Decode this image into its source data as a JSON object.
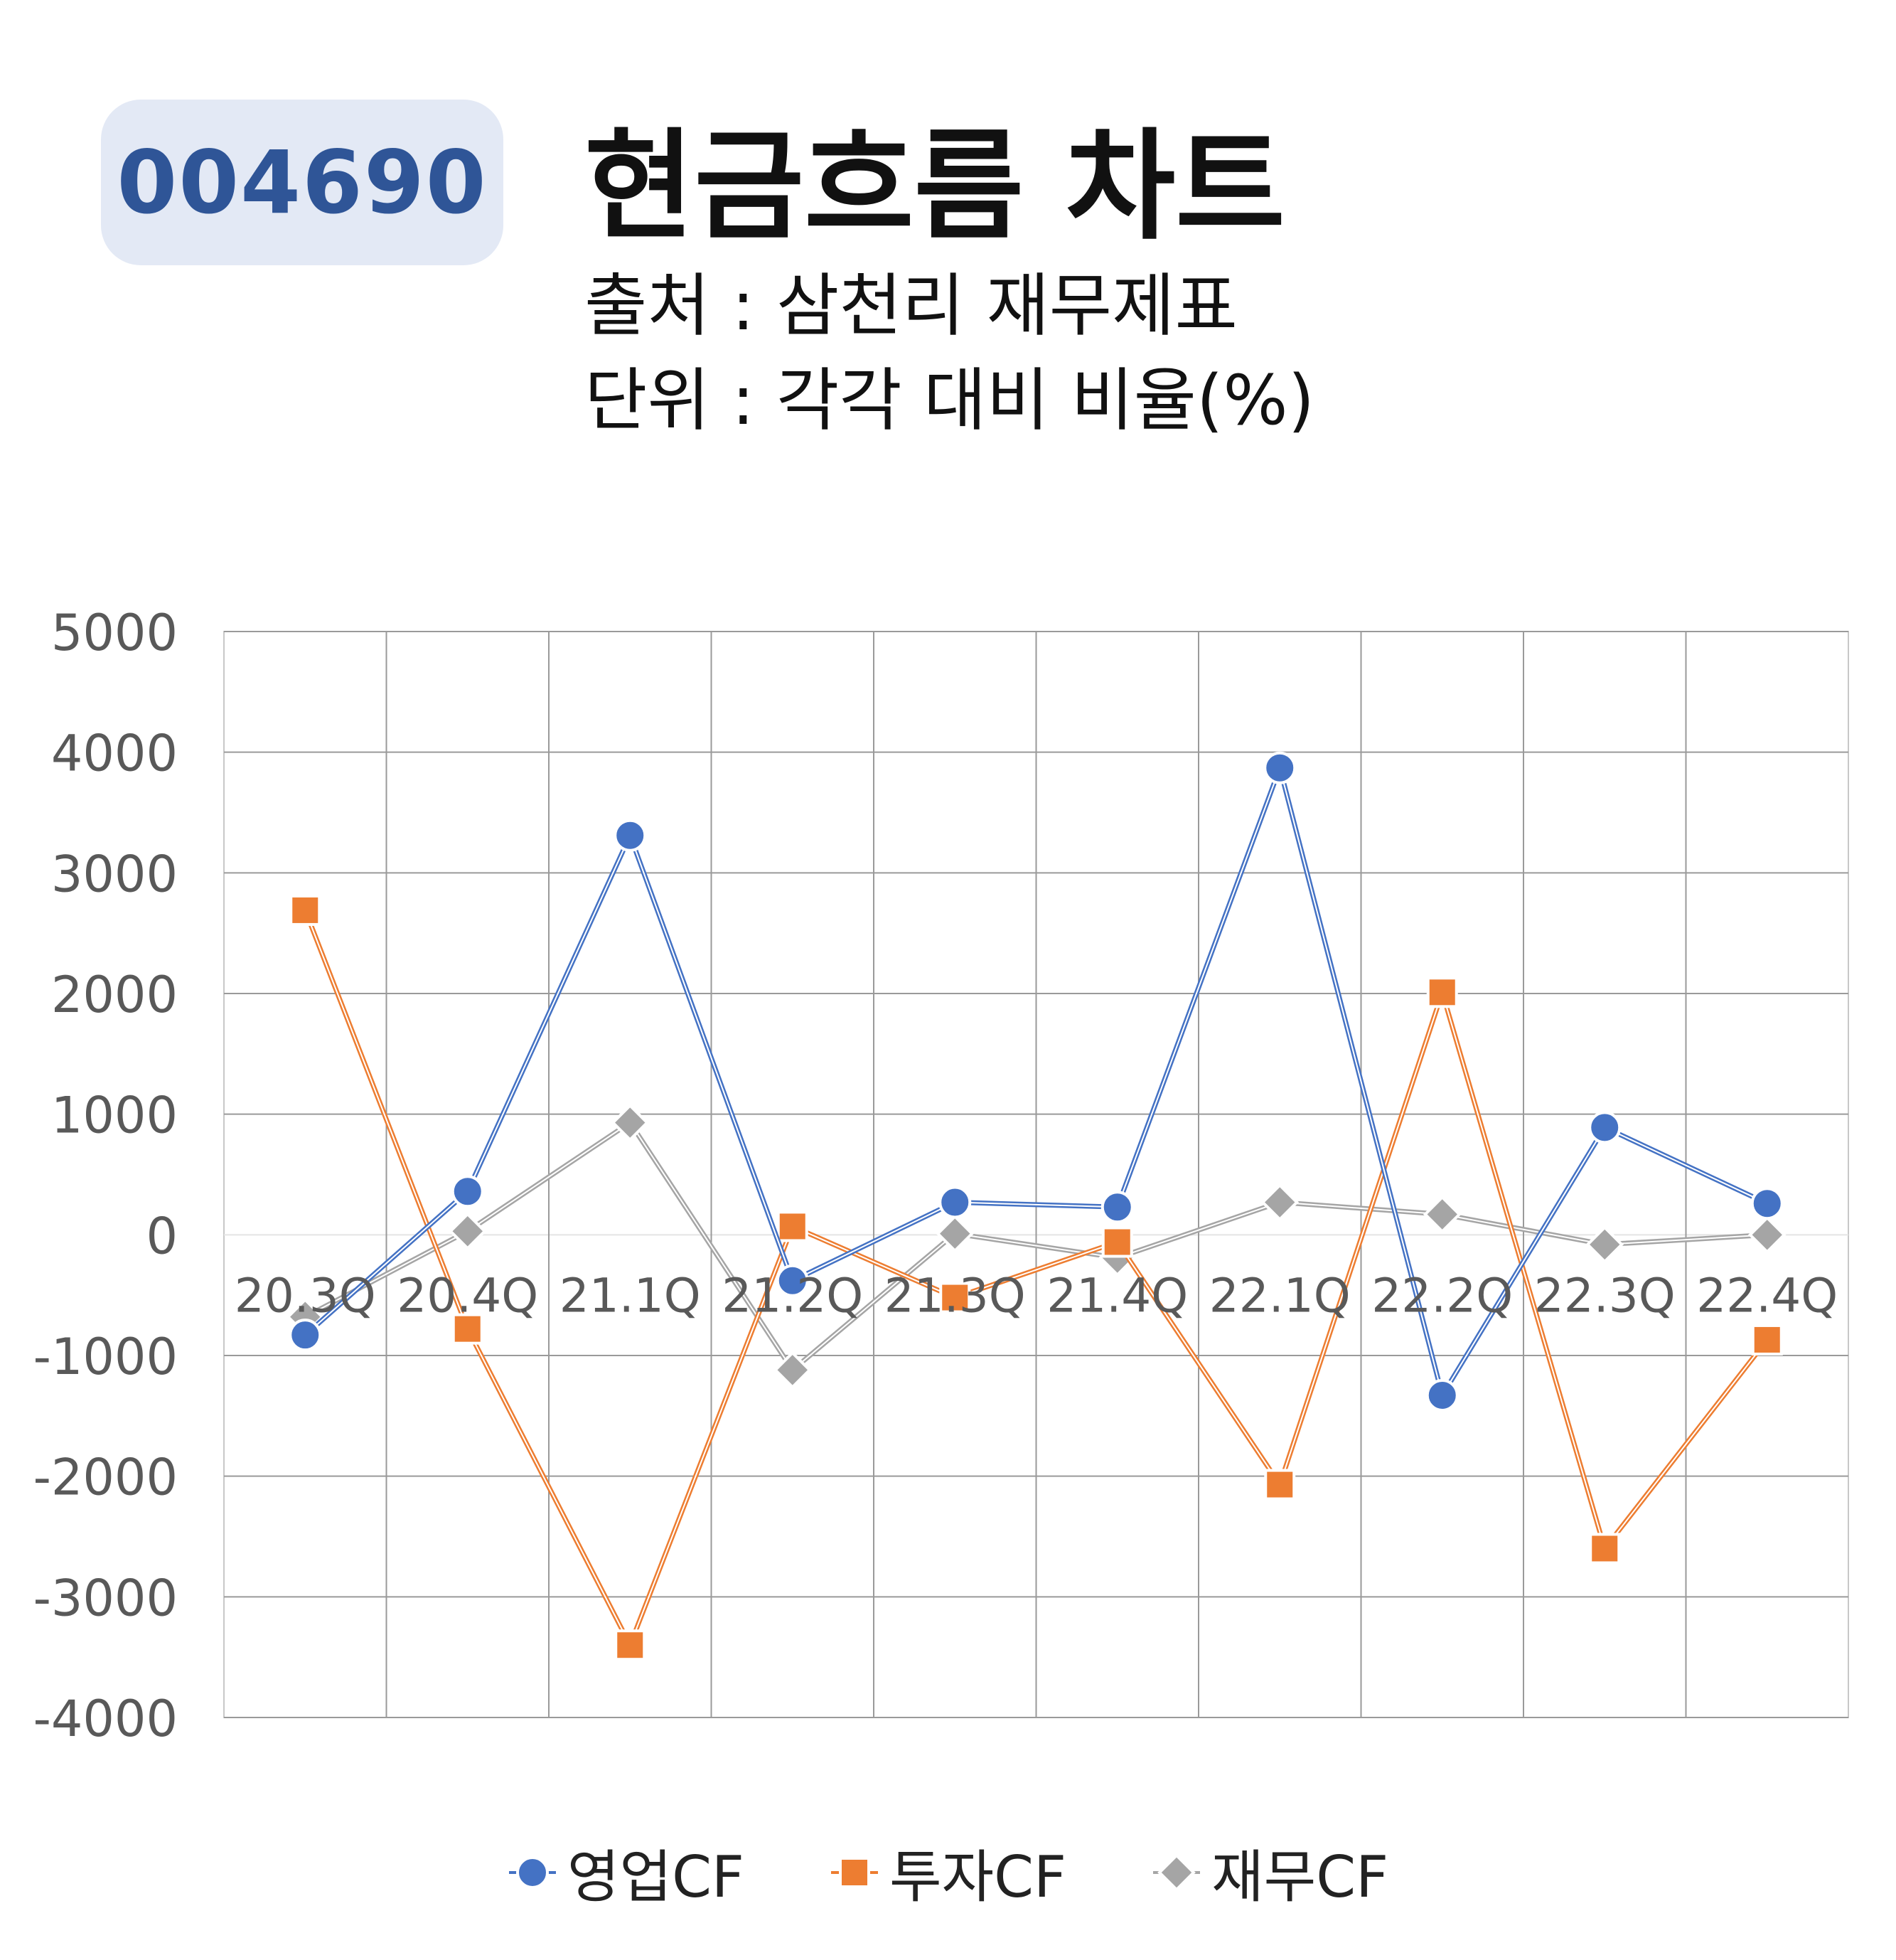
{
  "badge": {
    "code": "004690"
  },
  "header": {
    "title": "현금흐름 차트",
    "source": "출처 : 삼천리 재무제표",
    "unit": "단위 : 각각 대비 비율(%)"
  },
  "chart_data": {
    "type": "line",
    "categories": [
      "20.3Q",
      "20.4Q",
      "21.1Q",
      "21.2Q",
      "21.3Q",
      "21.4Q",
      "22.1Q",
      "22.2Q",
      "22.3Q",
      "22.4Q"
    ],
    "ylim": [
      -4000,
      5000
    ],
    "yticks": [
      5000,
      4000,
      3000,
      2000,
      1000,
      0,
      -1000,
      -2000,
      -3000,
      -4000
    ],
    "grid": true,
    "legend_position": "bottom",
    "series": [
      {
        "name": "영업CF",
        "color": "#4472c4",
        "marker": "circle",
        "values": [
          -830,
          360,
          3310,
          -380,
          270,
          230,
          3870,
          -1330,
          890,
          260
        ]
      },
      {
        "name": "투자CF",
        "color": "#ed7d31",
        "marker": "square",
        "values": [
          2690,
          -780,
          -3400,
          70,
          -520,
          -60,
          -2070,
          2010,
          -2600,
          -870
        ]
      },
      {
        "name": "재무CF",
        "color": "#a5a5a5",
        "marker": "diamond",
        "values": [
          -680,
          30,
          930,
          -1120,
          10,
          -190,
          270,
          170,
          -80,
          0
        ]
      }
    ]
  }
}
